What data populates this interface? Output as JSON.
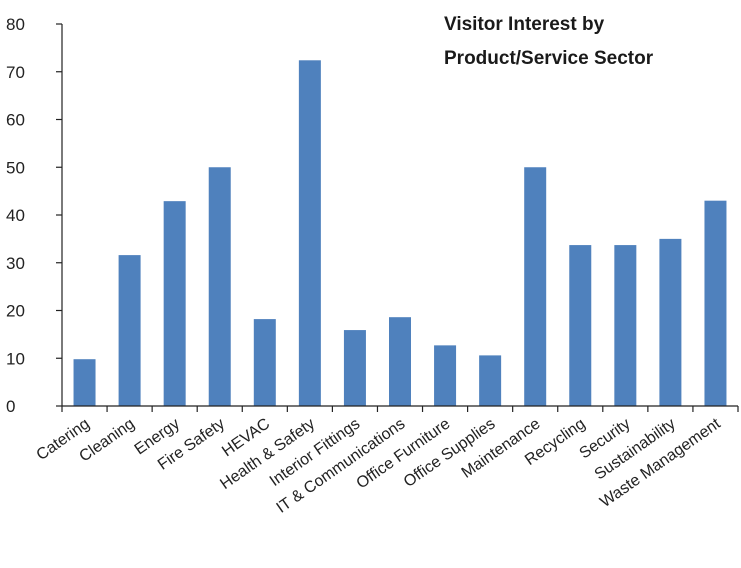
{
  "chart_data": {
    "type": "bar",
    "title_lines": [
      "Visitor Interest by",
      "Product/Service Sector"
    ],
    "categories": [
      "Catering",
      "Cleaning",
      "Energy",
      "Fire Safety",
      "HEVAC",
      "Health & Safety",
      "Interior Fittings",
      "IT & Communications",
      "Office Furniture",
      "Office Supplies",
      "Maintenance",
      "Recycling",
      "Security",
      "Sustainability",
      "Waste Management"
    ],
    "values": [
      9.8,
      31.6,
      42.9,
      50.0,
      18.2,
      72.4,
      15.9,
      18.6,
      12.7,
      10.6,
      50.0,
      33.7,
      33.7,
      35.0,
      43.0
    ],
    "yticks": [
      0,
      10,
      20,
      30,
      40,
      50,
      60,
      70,
      80
    ],
    "ylim": [
      0,
      80
    ],
    "xlabel": "",
    "ylabel": "",
    "grid": false,
    "legend": "none",
    "bar_color": "#4f81bd"
  }
}
